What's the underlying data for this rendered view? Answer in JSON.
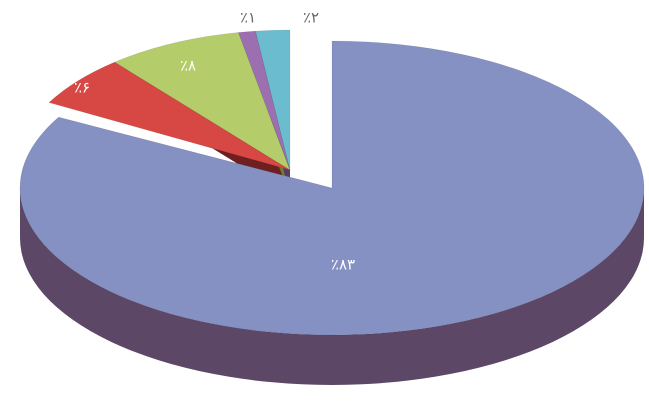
{
  "chart_data": {
    "type": "pie",
    "style": "3d-exploded",
    "legend": "none",
    "slices": [
      {
        "value": 83,
        "label": "٪۸۳",
        "color": "#8590c3",
        "side": "#5c4766"
      },
      {
        "value": 6,
        "label": "٪۶",
        "color": "#d74743",
        "side": "#6e1f1f"
      },
      {
        "value": 8,
        "label": "٪۸",
        "color": "#b4cd6a",
        "side": "#6b7f33"
      },
      {
        "value": 1,
        "label": "٪۱",
        "color": "#9b6fb0",
        "side": "#553c66"
      },
      {
        "value": 2,
        "label": "٪۲",
        "color": "#6cbcd0",
        "side": "#3c7382"
      }
    ]
  }
}
